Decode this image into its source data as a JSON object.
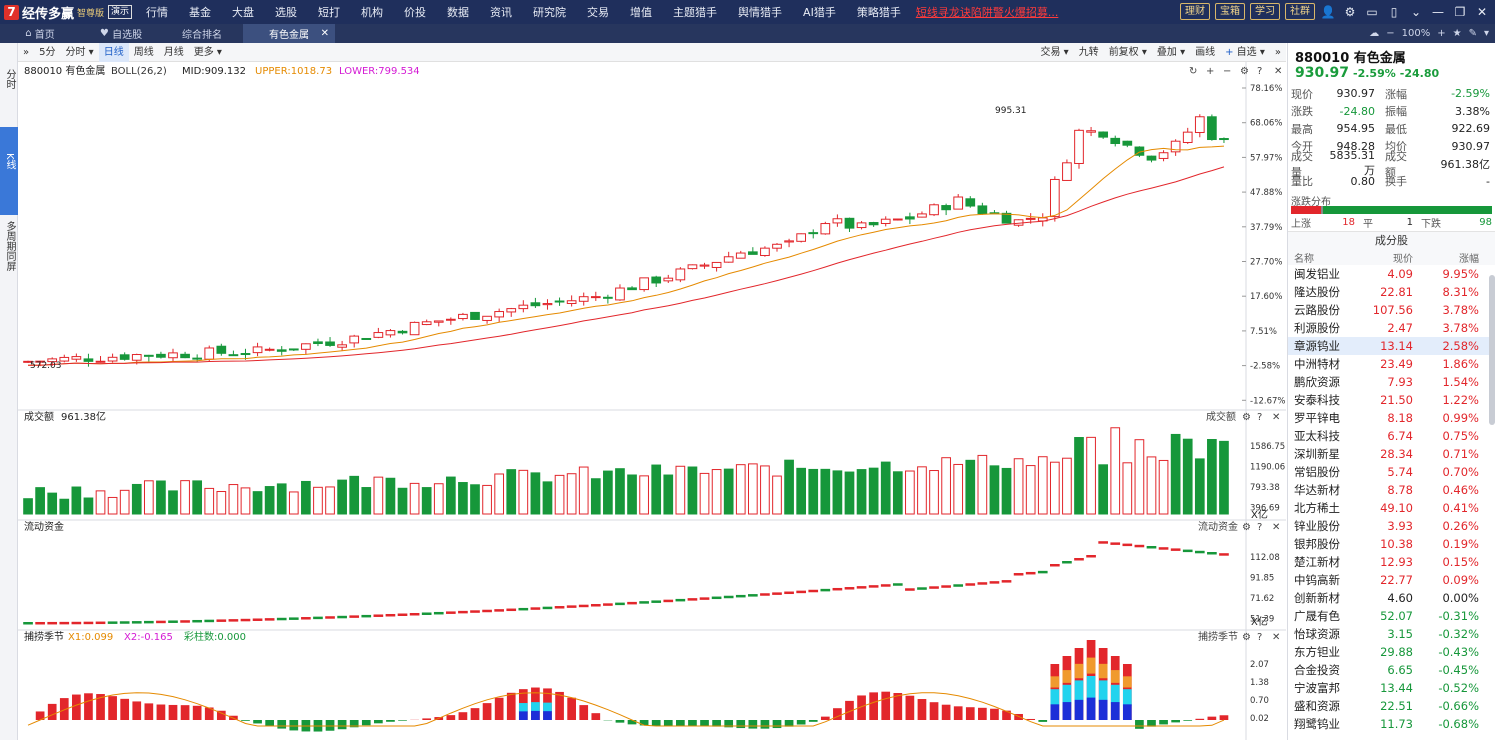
{
  "app": {
    "logo_name": "经传多赢",
    "edition": "智尊版",
    "demo": "演示"
  },
  "nav": [
    "行情",
    "基金",
    "大盘",
    "选股",
    "短打",
    "机构",
    "价投",
    "数据",
    "资讯",
    "研究院",
    "交易",
    "增值",
    "主题猎手",
    "舆情猎手",
    "AI猎手",
    "策略猎手"
  ],
  "promo": "短线寻龙诀陷阱警火爆招募...",
  "topright": {
    "buttons": [
      "理财",
      "宝箱",
      "学习",
      "社群"
    ]
  },
  "tabs": [
    {
      "label": "首页"
    },
    {
      "label": "自选股"
    },
    {
      "label": "综合排名"
    },
    {
      "label": "有色金属"
    }
  ],
  "tabbar_right": {
    "zoom": "100%"
  },
  "left_strip": [
    "分时",
    "K线",
    "多周期同屏"
  ],
  "chart_toolbar": {
    "left": [
      "5分",
      "分时",
      "日线",
      "周线",
      "月线",
      "更多"
    ],
    "right": [
      "交易",
      "九转",
      "前复权",
      "叠加",
      "画线",
      "自选"
    ]
  },
  "main_chart": {
    "code_name": "880010 有色金属",
    "indicator": "BOLL(26,2)",
    "mid": "MID:909.132",
    "upper": "UPPER:1018.73",
    "lower": "LOWER:799.534",
    "high_label": "995.31",
    "low_label": "572.03",
    "y_ticks": [
      "78.16%",
      "68.06%",
      "57.97%",
      "47.88%",
      "37.79%",
      "27.70%",
      "17.60%",
      "7.51%",
      "-2.58%",
      "-12.67%"
    ]
  },
  "volume_panel": {
    "title": "成交额",
    "value": "961.38亿",
    "right_label": "成交额",
    "y_ticks": [
      "1586.75",
      "1190.06",
      "793.38",
      "396.69"
    ],
    "unit": "X亿"
  },
  "flow_panel": {
    "title": "流动资金",
    "right_label": "流动资金",
    "y_ticks": [
      "112.08",
      "91.85",
      "71.62",
      "51.39"
    ],
    "unit": "X亿"
  },
  "season_panel": {
    "title": "捕捞季节",
    "x1": "X1:0.099",
    "x2": "X2:-0.165",
    "bars": "彩柱数:0.000",
    "right_label": "捕捞季节",
    "y_ticks": [
      "2.07",
      "1.38",
      "0.70",
      "0.02"
    ]
  },
  "quote": {
    "title": "880010 有色金属",
    "price": "930.97",
    "pct": "-2.59%",
    "change": "-24.80",
    "rows": [
      {
        "k": "现价",
        "v": "930.97",
        "k2": "涨幅",
        "v2": "-2.59%"
      },
      {
        "k": "涨跌",
        "v": "-24.80",
        "k2": "振幅",
        "v2": "3.38%"
      },
      {
        "k": "最高",
        "v": "954.95",
        "k2": "最低",
        "v2": "922.69"
      },
      {
        "k": "今开",
        "v": "948.28",
        "k2": "均价",
        "v2": "930.97"
      },
      {
        "k": "成交量",
        "v": "5835.31万",
        "k2": "成交额",
        "v2": "961.38亿"
      },
      {
        "k": "量比",
        "v": "0.80",
        "k2": "换手",
        "v2": "-"
      }
    ],
    "dist_title": "涨跌分布",
    "dist": {
      "up_label": "上涨",
      "up": "18",
      "flat_label": "平",
      "flat": "1",
      "down_label": "下跌",
      "down": "98"
    }
  },
  "constituents": {
    "title": "成分股",
    "headers": [
      "名称",
      "现价",
      "涨幅"
    ],
    "rows": [
      {
        "name": "闽发铝业",
        "price": "4.09",
        "chg": "9.95%",
        "dir": "up"
      },
      {
        "name": "隆达股份",
        "price": "22.81",
        "chg": "8.31%",
        "dir": "up"
      },
      {
        "name": "云路股份",
        "price": "107.56",
        "chg": "3.78%",
        "dir": "up"
      },
      {
        "name": "利源股份",
        "price": "2.47",
        "chg": "3.78%",
        "dir": "up"
      },
      {
        "name": "章源钨业",
        "price": "13.14",
        "chg": "2.58%",
        "dir": "up"
      },
      {
        "name": "中洲特材",
        "price": "23.49",
        "chg": "1.86%",
        "dir": "up"
      },
      {
        "name": "鹏欣资源",
        "price": "7.93",
        "chg": "1.54%",
        "dir": "up"
      },
      {
        "name": "安泰科技",
        "price": "21.50",
        "chg": "1.22%",
        "dir": "up"
      },
      {
        "name": "罗平锌电",
        "price": "8.18",
        "chg": "0.99%",
        "dir": "up"
      },
      {
        "name": "亚太科技",
        "price": "6.74",
        "chg": "0.75%",
        "dir": "up"
      },
      {
        "name": "深圳新星",
        "price": "28.34",
        "chg": "0.71%",
        "dir": "up"
      },
      {
        "name": "常铝股份",
        "price": "5.74",
        "chg": "0.70%",
        "dir": "up"
      },
      {
        "name": "华达新材",
        "price": "8.78",
        "chg": "0.46%",
        "dir": "up"
      },
      {
        "name": "北方稀土",
        "price": "49.10",
        "chg": "0.41%",
        "dir": "up"
      },
      {
        "name": "锌业股份",
        "price": "3.93",
        "chg": "0.26%",
        "dir": "up"
      },
      {
        "name": "银邦股份",
        "price": "10.38",
        "chg": "0.19%",
        "dir": "up"
      },
      {
        "name": "楚江新材",
        "price": "12.93",
        "chg": "0.15%",
        "dir": "up"
      },
      {
        "name": "中钨高新",
        "price": "22.77",
        "chg": "0.09%",
        "dir": "up"
      },
      {
        "name": "创新新材",
        "price": "4.60",
        "chg": "0.00%",
        "dir": "flat"
      },
      {
        "name": "广晟有色",
        "price": "52.07",
        "chg": "-0.31%",
        "dir": "down"
      },
      {
        "name": "怡球资源",
        "price": "3.15",
        "chg": "-0.32%",
        "dir": "down"
      },
      {
        "name": "东方钽业",
        "price": "29.88",
        "chg": "-0.43%",
        "dir": "down"
      },
      {
        "name": "合金投资",
        "price": "6.65",
        "chg": "-0.45%",
        "dir": "down"
      },
      {
        "name": "宁波富邦",
        "price": "13.44",
        "chg": "-0.52%",
        "dir": "down"
      },
      {
        "name": "盛和资源",
        "price": "22.51",
        "chg": "-0.66%",
        "dir": "down"
      },
      {
        "name": "翔鹭钨业",
        "price": "11.73",
        "chg": "-0.68%",
        "dir": "down"
      }
    ]
  },
  "colors": {
    "up": "#e2262b",
    "down": "#16973a",
    "nav_bg": "#1f2f5c",
    "accent": "#3a78d8"
  }
}
